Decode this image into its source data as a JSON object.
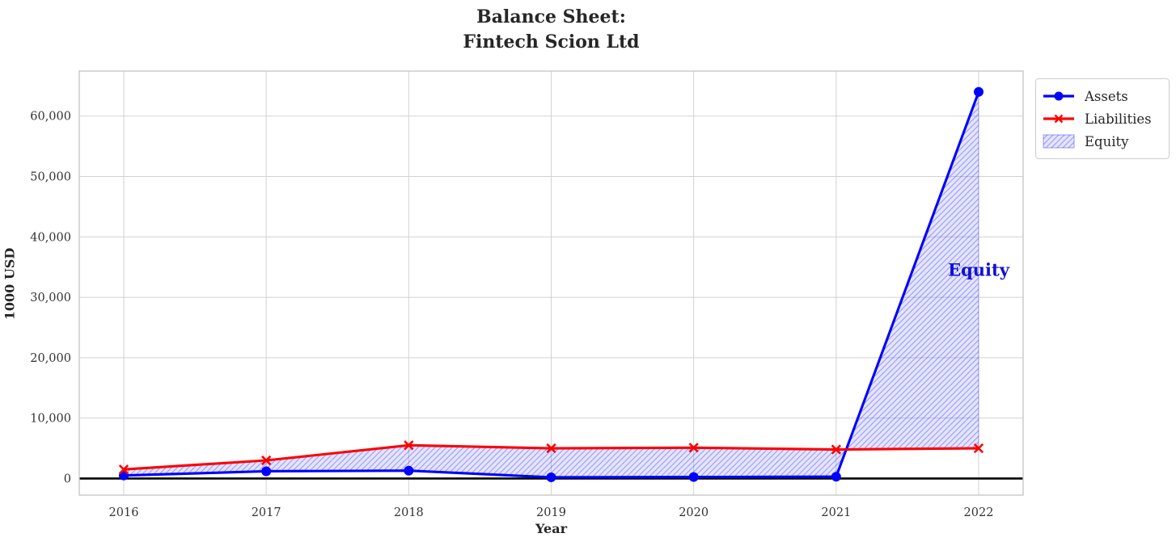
{
  "chart_data": {
    "type": "line",
    "title": "Balance Sheet:\nFintech Scion Ltd",
    "xlabel": "Year",
    "ylabel": "1000 USD",
    "categories": [
      "2016",
      "2017",
      "2018",
      "2019",
      "2020",
      "2021",
      "2022"
    ],
    "series": [
      {
        "name": "Assets",
        "color": "#0000ff",
        "marker": "circle",
        "values": [
          500,
          1200,
          1300,
          200,
          250,
          300,
          64000
        ]
      },
      {
        "name": "Liabilities",
        "color": "#ff0000",
        "marker": "x",
        "values": [
          1500,
          3000,
          5500,
          5000,
          5100,
          4800,
          5000
        ]
      }
    ],
    "fill_between": {
      "name": "Equity",
      "between": [
        "Assets",
        "Liabilities"
      ],
      "fill_color": "rgba(0,0,255,0.10)",
      "hatch_color": "rgba(0,0,255,0.30)",
      "hatch_style": "diagonal"
    },
    "annotation": {
      "text": "Equity",
      "color": "#0f0fd9",
      "x_index": 6,
      "y_value": 34500
    },
    "yticks": [
      0,
      10000,
      20000,
      30000,
      40000,
      50000,
      60000
    ],
    "ytick_labels": [
      "0",
      "10,000",
      "20,000",
      "30,000",
      "40,000",
      "50,000",
      "60,000"
    ],
    "ylim": [
      -2750,
      67450
    ],
    "grid": true,
    "zero_line": {
      "show": true,
      "color": "#000000"
    },
    "legend": {
      "position": "outside-top-right",
      "items": [
        {
          "label": "Assets",
          "swatch": "line-circle",
          "color": "#0000ff"
        },
        {
          "label": "Liabilities",
          "swatch": "line-x",
          "color": "#ff0000"
        },
        {
          "label": "Equity",
          "swatch": "hatch-patch",
          "color": "rgba(0,0,255,0.30)"
        }
      ]
    }
  }
}
